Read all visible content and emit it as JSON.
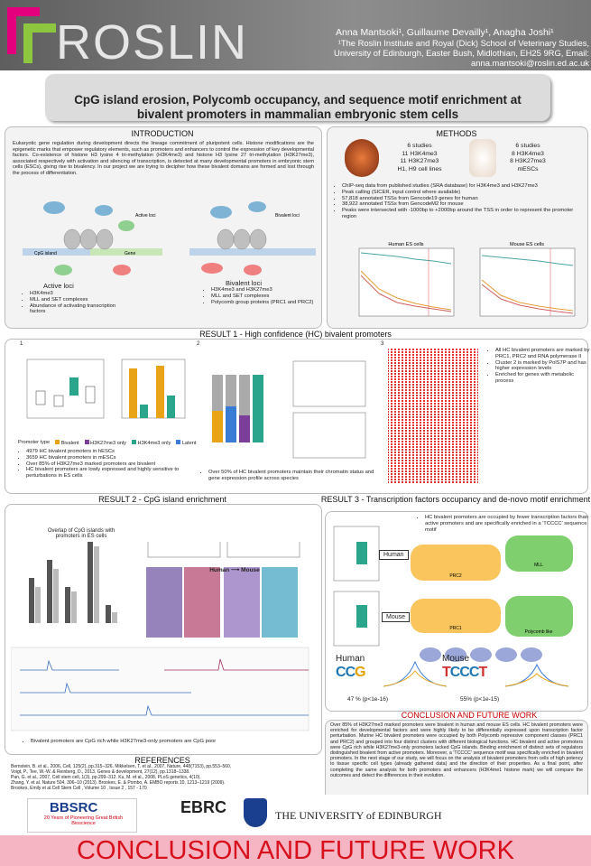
{
  "header": {
    "logo": "ROSLIN",
    "authors": "Anna Mantsoki¹, Guillaume Devailly¹, Anagha Joshi¹",
    "affiliation": "¹The Roslin Institute and Royal (Dick) School of Veterinary Studies, University of Edinburgh, Easter Bush, Midlothian, EH25 9RG, Email: anna.mantsoki@roslin.ed.ac.uk"
  },
  "title": "CpG island erosion, Polycomb occupancy, and sequence motif enrichment at bivalent promoters in mammalian embryonic stem cells",
  "introduction": {
    "heading": "INTRODUCTION",
    "text": "Eukaryotic gene regulation during development directs the lineage commitment of pluripotent cells. Histone modifications are the epigenetic marks that empower regulatory elements, such as promoters and enhancers to control the expression of key developmental factors. Co-existence of histone H3 lysine 4 tri-methylation (H3K4me3) and histone H3 lysine 27 tri-methylation (H3K27me3), associated respectively with activation and silencing of transcription, is detected at many developmental promoters in embryonic stem cells (ESCs), giving rise to bivalency. In our project we are trying to decipher how these bivalent domains are formed and lost through the process of differentiation.",
    "active_label": "Active loci",
    "active_bullets": [
      "H3K4me3",
      "MLL and SET complexes",
      "Abundance of activating transcription factors"
    ],
    "bivalent_label": "Bivalent loci",
    "bivalent_bullets": [
      "H3K4me3 and H3K27me3",
      "MLL and SET complexes",
      "Polycomb group proteins (PRC1 and PRC2)"
    ],
    "diagram_labels": [
      "CpG island",
      "Gene",
      "Active loci",
      "Bivalent loci"
    ]
  },
  "methods": {
    "heading": "METHODS",
    "human": [
      "6 studies",
      "11 H3K4me3",
      "11 H3K27me3",
      "H1, H9 cell lines"
    ],
    "mouse": [
      "6 studies",
      "8 H3K4me3",
      "8 H3K27me3",
      "mESCs"
    ],
    "bullets": [
      "ChIP-seq data from published studies (SRA database) for H3K4me3 and H3K27me3",
      "Peak calling (SICER, input control where available)",
      "57,818 annotated TSSs  from Gencode19 genes for human",
      "38,922 annotated TSSs  from GencodeM2 for mouse",
      "Peaks were intersected with -1000bp to +2000bp around the TSS in order to represent the promoter region"
    ],
    "chart_titles": [
      "Human ES cells",
      "Mouse ES cells"
    ]
  },
  "result1": {
    "heading": "RESULT  1 - High confidence (HC) bivalent promoters",
    "panels": [
      "1",
      "2",
      "3"
    ],
    "legend": [
      "Promoter type",
      "Bivalent",
      "H3K27me3 only",
      "H3K4me3 only",
      "Latent"
    ],
    "bullets_left": [
      "4979 HC bivalent promoters in hESCs",
      "3659 HC bivalent promoters in mESCs",
      "Over 85% of H3K27me3 marked promoters are bivalent",
      "HC bivalent promoters are lowly expressed and highly sensitive to perturbations in ES cells"
    ],
    "bullets_mid": [
      "Over 50% of HC bivalent promoters maintain their chromatin status and gene expression profile across species"
    ],
    "bullets_right": [
      "All HC bivalent promoters are marked by PRC1, PRC2 and RNA polymerase II",
      "Cluster 2 is marked by PolS7P and has higher expression levels",
      "Enriched for genes with metabolic process"
    ]
  },
  "result2": {
    "heading": "RESULT  2 - CpG island enrichment",
    "chart_title": "Overlap of CpG islands with promoters in ES cells",
    "direction": "Human ⟶ Mouse",
    "bullet": "Bivalent promoters are CpG rich while H3K27me3-only promoters are CpG poor"
  },
  "result3": {
    "heading": "RESULT  3 - Transcription factors occupancy and de-novo motif enrichment",
    "bullet": "HC bivalent promoters are occupied by fewer transcription factors than active promoters and are specifically enriched in a 'TCCCC' sequence motif",
    "human_label": "Human",
    "mouse_label": "Mouse",
    "human_motif": "47 % (p<1e-16)",
    "mouse_motif": "55% (p<1e-15)",
    "complexes": [
      "PRC2",
      "PRC1",
      "MLL",
      "Polycomb like"
    ]
  },
  "conclusion": {
    "heading": "CONCLUSION AND FUTURE WORK",
    "text": "Over 85% of H3K27me3 marked promoters were bivalent in human and mouse ES cells. HC bivalent promoters were enriched for developmental factors and were highly likely to be differentially expressed upon transcription factor perturbation. Murine HC bivalent promoters were occupied by both Polycomb repressive component classes (PRC1 and PRC2) and grouped into four distinct clusters with different biological functions. HC bivalent and active promoters were CpG rich while H3K27me3-only promoters lacked CpG islands. Binding enrichment of distinct sets of regulators distinguished bivalent from active promoters. Moreover, a 'TCCCC' sequence motif was specifically enriched in bivalent promoters. In the next stage of our study, we will focus on the analysis of bivalent promoters from cells of high potency to tissue specific cell types (already gathered data) and the direction of their properties. As a final point, after completing the same analysis for both promoters and enhancers (H3K4me1 histone mark) we will compare the outcomes and detect the differences in their evolution."
  },
  "references": {
    "heading": "REFERENCES",
    "items": [
      "Bernstein, B. et al., 2006, Cell, 125(2), pp.315–326. Mikkelsen, T. et al., 2007, Nature, 448(7153), pp.553–560,",
      "Voigt, P., Tee, W.-W. & Reinberg, D., 2013, Genes & development, 27(12), pp.1318–1338.",
      "Pan, G. et al., 2007, Cell stem cell, 1(3), pp.299–312. Ku, M. et al., 2008, PLoS genetics, 4(10).",
      "Zhang, Y. et al. Nature 504, 306–10 (2013). Brookes, E. & Pombo, A. EMBO reports 10, 1213–1219 (2009).",
      "Brookes, Emily et al.Cell Stem Cell , Volume 10 , Issue 2 , 157 - 170"
    ]
  },
  "footer": {
    "bbsrc": "BBSRC",
    "bbsrc_tagline": "20 Years of Pioneering Great British Bioscience",
    "ebrc": "EBRC",
    "university": "THE UNIVERSITY of EDINBURGH",
    "banner": "CONCLUSION AND FUTURE WORK"
  }
}
